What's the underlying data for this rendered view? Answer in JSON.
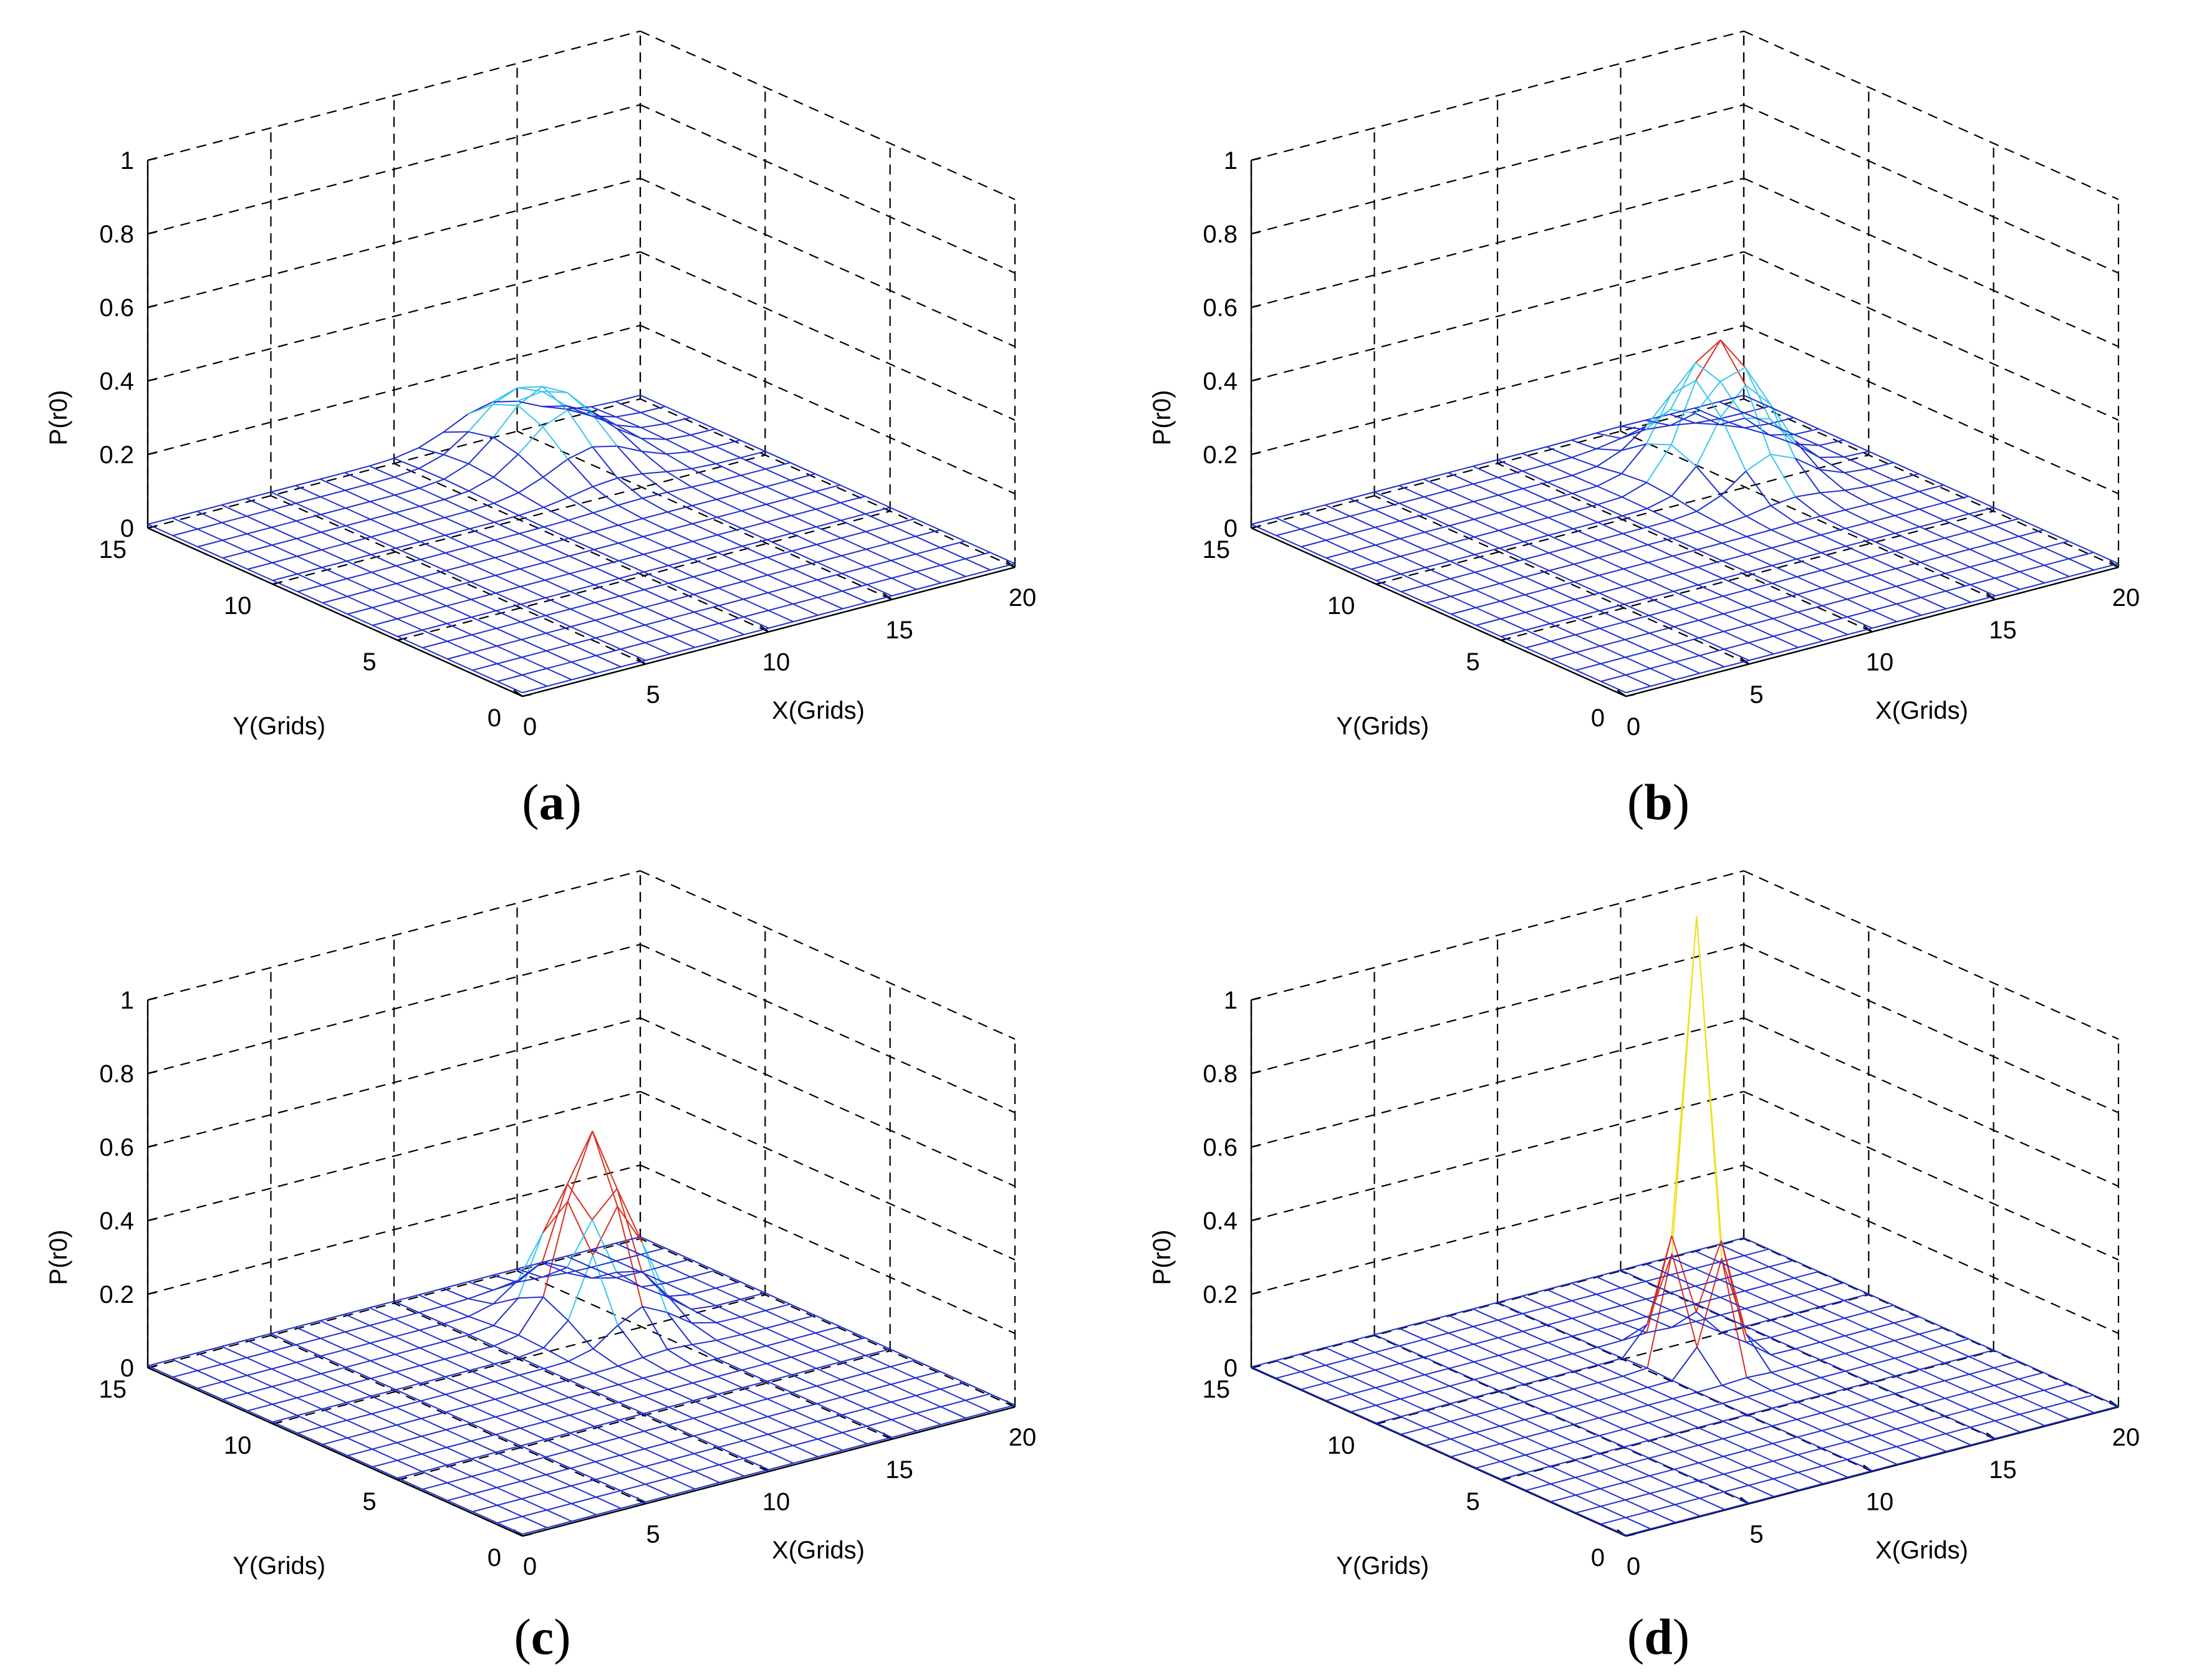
{
  "figure": {
    "type": "surface3d-grid",
    "panels": [
      {
        "id": "a",
        "caption_open": "(",
        "caption_letter": "a",
        "caption_close": ")",
        "chart_data": {
          "type": "surface",
          "title": "",
          "xlabel": "X(Grids)",
          "ylabel": "Y(Grids)",
          "zlabel": "P(r0)",
          "xlim": [
            0,
            20
          ],
          "ylim": [
            0,
            15
          ],
          "zlim": [
            0,
            1
          ],
          "xticks": [
            "0",
            "5",
            "10",
            "15",
            "20"
          ],
          "yticks": [
            "0",
            "5",
            "10",
            "15"
          ],
          "zticks": [
            "0",
            "0.2",
            "0.4",
            "0.6",
            "0.8",
            "1"
          ],
          "grid": true,
          "peak": {
            "x": 14,
            "y": 13,
            "z": 0.2
          },
          "spread": 1.6,
          "baseline": 0.01
        }
      },
      {
        "id": "b",
        "caption_open": "(",
        "caption_letter": "b",
        "caption_close": ")",
        "chart_data": {
          "type": "surface",
          "title": "",
          "xlabel": "X(Grids)",
          "ylabel": "Y(Grids)",
          "zlabel": "P(r0)",
          "xlim": [
            0,
            20
          ],
          "ylim": [
            0,
            15
          ],
          "zlim": [
            0,
            1
          ],
          "xticks": [
            "0",
            "5",
            "10",
            "15",
            "20"
          ],
          "yticks": [
            "0",
            "5",
            "10",
            "15"
          ],
          "zticks": [
            "0",
            "0.2",
            "0.4",
            "0.6",
            "0.8",
            "1"
          ],
          "grid": true,
          "peak": {
            "x": 15,
            "y": 11,
            "z": 0.37
          },
          "spread": 1.3,
          "baseline": 0.01
        }
      },
      {
        "id": "c",
        "caption_open": "(",
        "caption_letter": "c",
        "caption_close": ")",
        "chart_data": {
          "type": "surface",
          "title": "",
          "xlabel": "X(Grids)",
          "ylabel": "Y(Grids)",
          "zlabel": "P(r0)",
          "xlim": [
            0,
            20
          ],
          "ylim": [
            0,
            15
          ],
          "zlim": [
            0,
            1
          ],
          "xticks": [
            "0",
            "5",
            "10",
            "15",
            "20"
          ],
          "yticks": [
            "0",
            "5",
            "10",
            "15"
          ],
          "zticks": [
            "0",
            "0.2",
            "0.4",
            "0.6",
            "0.8",
            "1"
          ],
          "grid": true,
          "peak": {
            "x": 14,
            "y": 11,
            "z": 0.52
          },
          "spread": 1.1,
          "baseline": 0.005
        }
      },
      {
        "id": "d",
        "caption_open": "(",
        "caption_letter": "d",
        "caption_close": ")",
        "chart_data": {
          "type": "surface",
          "title": "",
          "xlabel": "X(Grids)",
          "ylabel": "Y(Grids)",
          "zlabel": "P(r0)",
          "xlim": [
            0,
            20
          ],
          "ylim": [
            0,
            15
          ],
          "zlim": [
            0,
            1
          ],
          "xticks": [
            "0",
            "5",
            "10",
            "15",
            "20"
          ],
          "yticks": [
            "0",
            "5",
            "10",
            "15"
          ],
          "zticks": [
            "0",
            "0.2",
            "0.4",
            "0.6",
            "0.8",
            "1"
          ],
          "grid": true,
          "peak": {
            "x": 12,
            "y": 9,
            "z": 1.2
          },
          "spread": 0.6,
          "baseline": 0.002
        }
      }
    ]
  },
  "colors": {
    "mesh": "#1f2fd0",
    "mesh_mid": "#39c6f0",
    "mesh_high": "#f0e020",
    "mesh_top": "#d83020",
    "grid": "#000000",
    "background": "#ffffff"
  }
}
